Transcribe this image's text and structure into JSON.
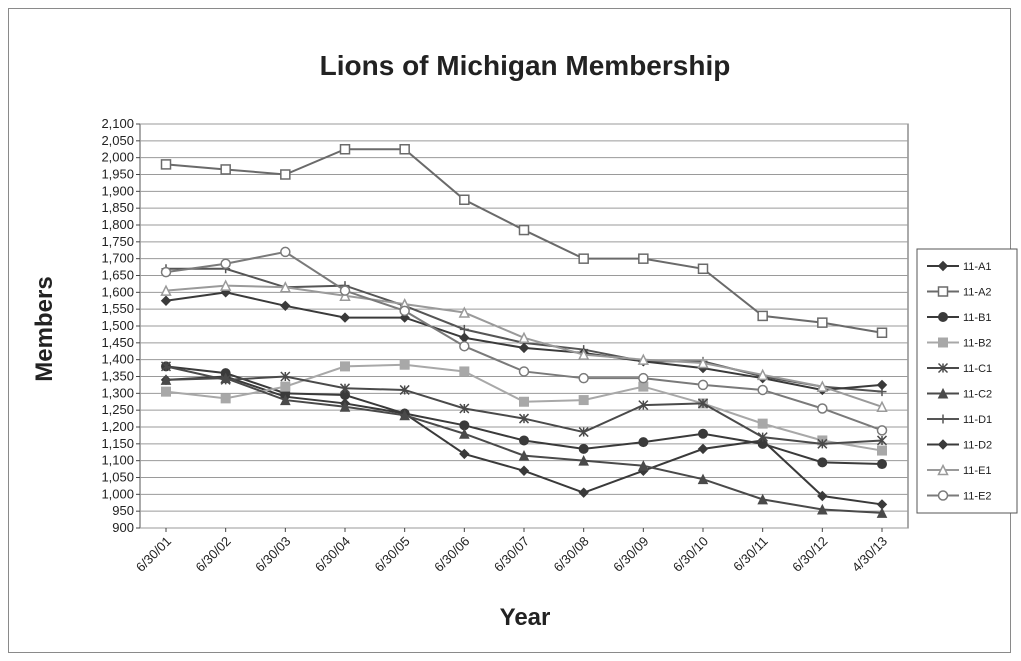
{
  "chart_data": {
    "type": "line",
    "title": "Lions of Michigan Membership",
    "xlabel": "Year",
    "ylabel": "Members",
    "categories": [
      "6/30/01",
      "6/30/02",
      "6/30/03",
      "6/30/04",
      "6/30/05",
      "6/30/06",
      "6/30/07",
      "6/30/08",
      "6/30/09",
      "6/30/10",
      "6/30/11",
      "6/30/12",
      "4/30/13"
    ],
    "ylim": [
      900,
      2100
    ],
    "ytick_step": 50,
    "grid": true,
    "legend_position": "right",
    "series": [
      {
        "name": "11-A1",
        "marker": "diamond",
        "color": "#3a3a3a",
        "values": [
          1340,
          1350,
          1290,
          1270,
          1240,
          1120,
          1070,
          1005,
          1070,
          1135,
          1160,
          995,
          970
        ]
      },
      {
        "name": "11-A2",
        "marker": "square-open",
        "color": "#6a6a6a",
        "values": [
          1980,
          1965,
          1950,
          2025,
          2025,
          1875,
          1785,
          1700,
          1700,
          1670,
          1530,
          1510,
          1480
        ]
      },
      {
        "name": "11-B1",
        "marker": "circle",
        "color": "#3a3a3a",
        "values": [
          1380,
          1360,
          1300,
          1295,
          1240,
          1205,
          1160,
          1135,
          1155,
          1180,
          1150,
          1095,
          1090
        ]
      },
      {
        "name": "11-B2",
        "marker": "square",
        "color": "#a8a8a8",
        "values": [
          1305,
          1285,
          1320,
          1380,
          1385,
          1365,
          1275,
          1280,
          1320,
          1270,
          1210,
          1160,
          1130
        ]
      },
      {
        "name": "11-C1",
        "marker": "x",
        "color": "#4a4a4a",
        "values": [
          1380,
          1340,
          1350,
          1315,
          1310,
          1255,
          1225,
          1185,
          1265,
          1270,
          1170,
          1150,
          1160
        ]
      },
      {
        "name": "11-C2",
        "marker": "triangle",
        "color": "#4a4a4a",
        "values": [
          1340,
          1345,
          1280,
          1260,
          1235,
          1180,
          1115,
          1100,
          1085,
          1045,
          985,
          955,
          945
        ]
      },
      {
        "name": "11-D1",
        "marker": "plus",
        "color": "#555555",
        "values": [
          1670,
          1670,
          1615,
          1620,
          1560,
          1490,
          1450,
          1430,
          1395,
          1395,
          1350,
          1320,
          1305
        ]
      },
      {
        "name": "11-D2",
        "marker": "diamond",
        "color": "#3a3a3a",
        "values": [
          1575,
          1600,
          1560,
          1525,
          1525,
          1465,
          1435,
          1420,
          1395,
          1375,
          1345,
          1310,
          1325
        ]
      },
      {
        "name": "11-E1",
        "marker": "triangle-open",
        "color": "#9a9a9a",
        "values": [
          1605,
          1620,
          1615,
          1590,
          1565,
          1540,
          1465,
          1415,
          1400,
          1390,
          1355,
          1320,
          1260
        ]
      },
      {
        "name": "11-E2",
        "marker": "circle-open",
        "color": "#7a7a7a",
        "values": [
          1660,
          1685,
          1720,
          1605,
          1545,
          1440,
          1365,
          1345,
          1345,
          1325,
          1310,
          1255,
          1190
        ]
      }
    ]
  }
}
